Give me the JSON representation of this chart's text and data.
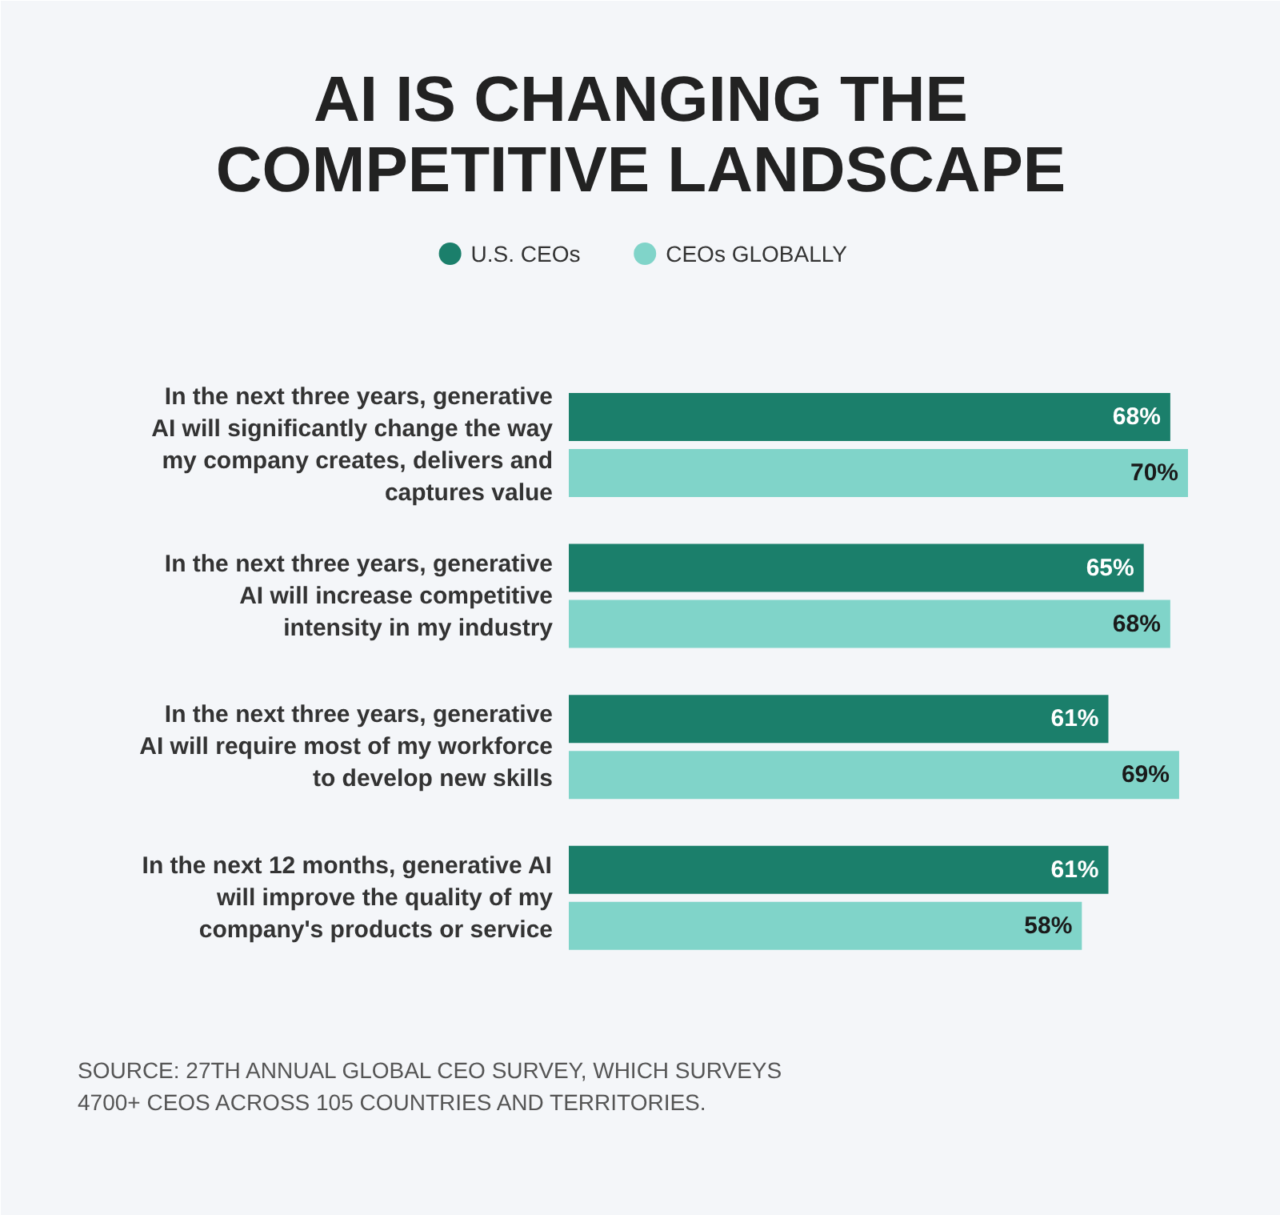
{
  "chart_data": {
    "type": "bar",
    "orientation": "horizontal",
    "title": "AI IS CHANGING THE COMPETITIVE LANDSCAPE",
    "categories": [
      "In the next three years, generative AI will significantly change the way my company creates, delivers and captures value",
      "In the next three years, generative AI will increase competitive intensity in my industry",
      "In the next three years, generative AI will require most of my workforce to develop new skills",
      "In the next 12 months, generative AI will improve the quality of my company's products or service"
    ],
    "series": [
      {
        "name": "U.S. CEOs",
        "color": "#1b7f6b",
        "values": [
          68,
          65,
          61,
          61
        ],
        "value_labels": [
          "68%",
          "65%",
          "61%",
          "61%"
        ]
      },
      {
        "name": "CEOs GLOBALLY",
        "color": "#80d4c9",
        "values": [
          70,
          68,
          69,
          58
        ],
        "value_labels": [
          "70%",
          "68%",
          "69%",
          "58%"
        ]
      }
    ],
    "legend": "top",
    "grid": false,
    "annotations": [
      "SOURCE: 27TH ANNUAL GLOBAL CEO SURVEY, WHICH SURVEYS 4700+ CEOS ACROSS 105 COUNTRIES AND TERRITORIES."
    ]
  }
}
